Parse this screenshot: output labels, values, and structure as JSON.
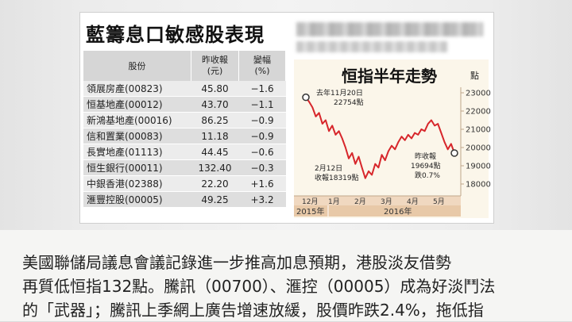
{
  "table": {
    "title": "藍籌息口敏感股表現",
    "headers": {
      "stock": "股份",
      "close": "昨收報\n(元)",
      "change": "變幅\n(%)"
    },
    "rows": [
      {
        "name": "領展房產(00823)",
        "close": "45.80",
        "change": "−1.6"
      },
      {
        "name": "恒基地產(00012)",
        "close": "43.70",
        "change": "−1.1"
      },
      {
        "name": "新鴻基地產(00016)",
        "close": "86.25",
        "change": "−0.9"
      },
      {
        "name": "信和置業(00083)",
        "close": "11.18",
        "change": "−0.9"
      },
      {
        "name": "長實地產(01113)",
        "close": "44.45",
        "change": "−0.6"
      },
      {
        "name": "恒生銀行(00011)",
        "close": "132.40",
        "change": "−0.3"
      },
      {
        "name": "中銀香港(02388)",
        "close": "22.20",
        "change": "+1.6"
      },
      {
        "name": "滙豐控股(00005)",
        "close": "49.25",
        "change": "+3.2"
      }
    ]
  },
  "chart_title": "恒指半年走勢",
  "chart_unit": "點",
  "chart_data": {
    "type": "line",
    "title": "恒指半年走勢",
    "ylabel": "點",
    "ylim": [
      18000,
      23000
    ],
    "yticks": [
      "23000",
      "22000",
      "21000",
      "20000",
      "19000",
      "18000"
    ],
    "x_month_labels": [
      "12月",
      "1月",
      "2月",
      "3月",
      "4月",
      "5月"
    ],
    "year_labels": [
      "2015年",
      "2016年"
    ],
    "line_color": "#d7262b",
    "series": [
      {
        "values": [
          22754,
          22500,
          22200,
          21700,
          21900,
          21300,
          21500,
          20900,
          21200,
          20700,
          20900,
          20500,
          20000,
          19400,
          19700,
          19100,
          19500,
          18900,
          18319,
          18700,
          18500,
          19100,
          18900,
          19600,
          19300,
          19800,
          20100,
          19900,
          20300,
          20600,
          20400,
          20700,
          20500,
          20800,
          20700,
          21000,
          20900,
          21300,
          21500,
          21200,
          21300,
          20800,
          20300,
          19900,
          20200,
          19694
        ]
      }
    ],
    "annotations": [
      {
        "text": "去年11月20日",
        "text2": "22754點"
      },
      {
        "text": "2月12日",
        "text2": "收報18319點"
      },
      {
        "text": "昨收報",
        "text2": "19694點",
        "text3": "跌0.7%"
      }
    ]
  },
  "caption": {
    "line1": "美國聯儲局議息會議記錄進一步推高加息預期，港股淡友借勢",
    "line2": "再質低恒指132點。騰訊（00700）、滙控（00005）成為好淡鬥法",
    "line3": "的「武器」；騰訊上季網上廣告增速放緩，股價昨跌2.4%，拖低指"
  }
}
